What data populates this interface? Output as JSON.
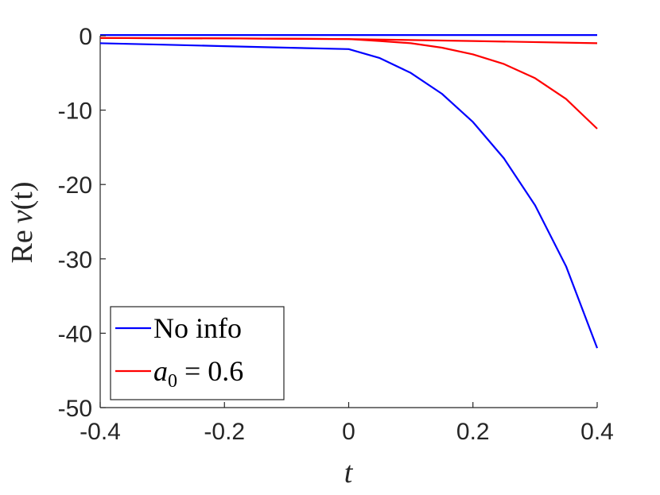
{
  "chart_data": {
    "type": "line",
    "title": "",
    "xlabel": "t",
    "ylabel_prefix": "Re",
    "ylabel_func": "v",
    "ylabel_arg": "(t)",
    "xlim": [
      -0.4,
      0.4
    ],
    "ylim": [
      -50,
      0
    ],
    "x_ticks": [
      -0.4,
      -0.2,
      0,
      0.2,
      0.4
    ],
    "x_tick_labels": [
      "-0.4",
      "-0.2",
      "0",
      "0.2",
      "0.4"
    ],
    "y_ticks": [
      -50,
      -40,
      -30,
      -20,
      -10,
      0
    ],
    "y_tick_labels": [
      "-50",
      "-40",
      "-30",
      "-20",
      "-10",
      "0"
    ],
    "grid": false,
    "legend_position": "bottom-left",
    "legend": [
      {
        "label": "No info",
        "color": "#0000ff"
      },
      {
        "label_var": "a",
        "label_sub": "0",
        "label_rest": " = 0.6",
        "color": "#ff0000"
      }
    ],
    "series": [
      {
        "legend_index": 0,
        "color": "#0000ff",
        "x": [
          -0.4,
          0.4
        ],
        "y": [
          0.1,
          0.1
        ]
      },
      {
        "legend_index": 0,
        "color": "#0000ff",
        "x": [
          -0.4,
          -0.3,
          -0.2,
          -0.1,
          0,
          0.05,
          0.1,
          0.15,
          0.2,
          0.25,
          0.3,
          0.35,
          0.4
        ],
        "y": [
          -1.0,
          -1.2,
          -1.4,
          -1.6,
          -1.8,
          -3.0,
          -5.0,
          -7.8,
          -11.6,
          -16.5,
          -22.8,
          -31.0,
          -42.0
        ]
      },
      {
        "legend_index": 1,
        "color": "#ff0000",
        "x": [
          -0.4,
          -0.2,
          0,
          0.2,
          0.4
        ],
        "y": [
          -0.3,
          -0.35,
          -0.45,
          -0.7,
          -1.0
        ]
      },
      {
        "legend_index": 1,
        "color": "#ff0000",
        "x": [
          -0.4,
          -0.2,
          0,
          0.05,
          0.1,
          0.15,
          0.2,
          0.25,
          0.3,
          0.35,
          0.4
        ],
        "y": [
          -0.3,
          -0.35,
          -0.45,
          -0.7,
          -1.0,
          -1.6,
          -2.5,
          -3.8,
          -5.7,
          -8.5,
          -12.5
        ]
      }
    ]
  }
}
